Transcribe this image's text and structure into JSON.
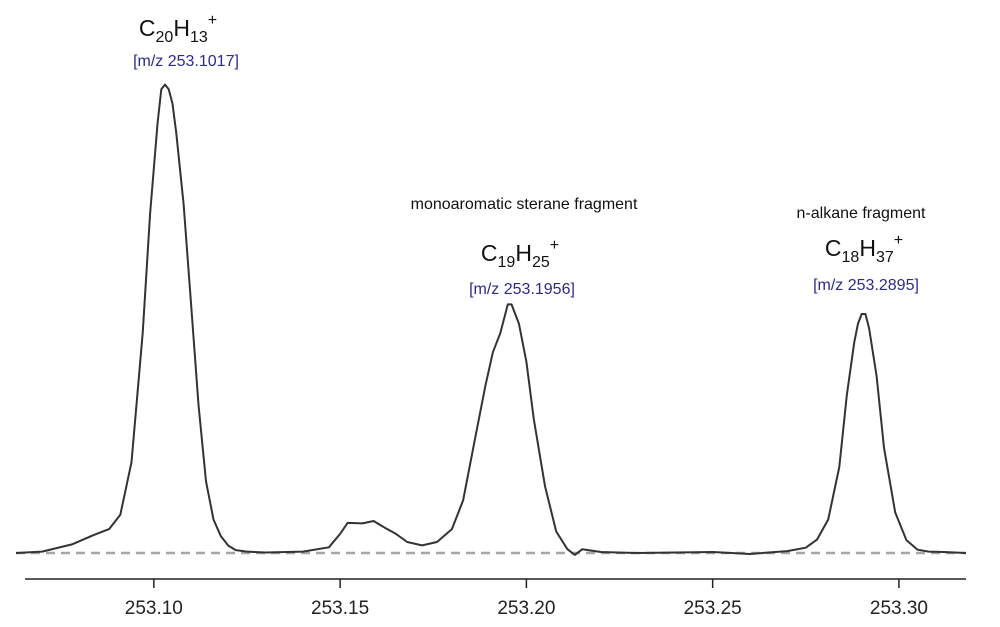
{
  "chart_data": {
    "type": "line",
    "title": "",
    "xlabel": "",
    "ylabel": "",
    "xlim": [
      253.063,
      253.318
    ],
    "ylim": [
      0,
      100
    ],
    "grid": false,
    "colors": {
      "line": "#333333",
      "baseline": "#a6a6a6",
      "axis": "#222222",
      "mz_label": "#2b2b8c"
    },
    "x_ticks": [
      253.1,
      253.15,
      253.2,
      253.25,
      253.3
    ],
    "x_tick_labels": [
      "253.10",
      "253.15",
      "253.20",
      "253.25",
      "253.30"
    ],
    "series": [
      {
        "x": [
          253.063,
          253.07,
          253.078,
          253.084,
          253.088,
          253.091,
          253.094,
          253.097,
          253.099,
          253.101,
          253.102,
          253.103,
          253.104,
          253.105,
          253.106,
          253.108,
          253.11,
          253.112,
          253.114,
          253.116,
          253.118,
          253.12,
          253.122,
          253.125,
          253.13,
          253.14,
          253.147,
          253.15,
          253.152,
          253.156,
          253.159,
          253.162,
          253.165,
          253.168,
          253.172,
          253.176,
          253.18,
          253.183,
          253.186,
          253.189,
          253.191,
          253.193,
          253.195,
          253.196,
          253.198,
          253.2,
          253.202,
          253.205,
          253.208,
          253.211,
          253.213,
          253.215,
          253.22,
          253.23,
          253.24,
          253.25,
          253.26,
          253.27,
          253.275,
          253.278,
          253.281,
          253.284,
          253.286,
          253.288,
          253.289,
          253.29,
          253.291,
          253.292,
          253.294,
          253.296,
          253.299,
          253.302,
          253.305,
          253.308,
          253.312,
          253.318
        ],
        "y": [
          0,
          0.3,
          1.8,
          3.8,
          5,
          8,
          19,
          46,
          71,
          90,
          97,
          98,
          97,
          94,
          88,
          73,
          52,
          31,
          15,
          7,
          3.5,
          1.5,
          0.6,
          0.3,
          0.1,
          0.3,
          1.2,
          4,
          6.3,
          6.2,
          6.7,
          5.3,
          4,
          2.3,
          1.6,
          2.3,
          5,
          11,
          23,
          35,
          42,
          46,
          52,
          52,
          48,
          40,
          28,
          14,
          4.5,
          0.8,
          -0.4,
          0.8,
          0.2,
          0,
          0.1,
          0.2,
          -0.2,
          0.4,
          1.1,
          2.8,
          7,
          18,
          33,
          44,
          48,
          50,
          50,
          47,
          37,
          22,
          8.5,
          2.7,
          0.7,
          0.3,
          0.2,
          0
        ]
      }
    ],
    "peaks": [
      {
        "formula_main": "C",
        "c_count": "20",
        "formula_h": "H",
        "h_count": "13",
        "charge": "+",
        "mz_label": "[m/z 253.1017]",
        "note": "",
        "x": 253.1017
      },
      {
        "formula_main": "C",
        "c_count": "19",
        "formula_h": "H",
        "h_count": "25",
        "charge": "+",
        "mz_label": "[m/z 253.1956]",
        "note": "monoaromatic sterane fragment",
        "x": 253.1956
      },
      {
        "formula_main": "C",
        "c_count": "18",
        "formula_h": "H",
        "h_count": "37",
        "charge": "+",
        "mz_label": "[m/z 253.2895]",
        "note": "n-alkane fragment",
        "x": 253.2895
      }
    ]
  }
}
